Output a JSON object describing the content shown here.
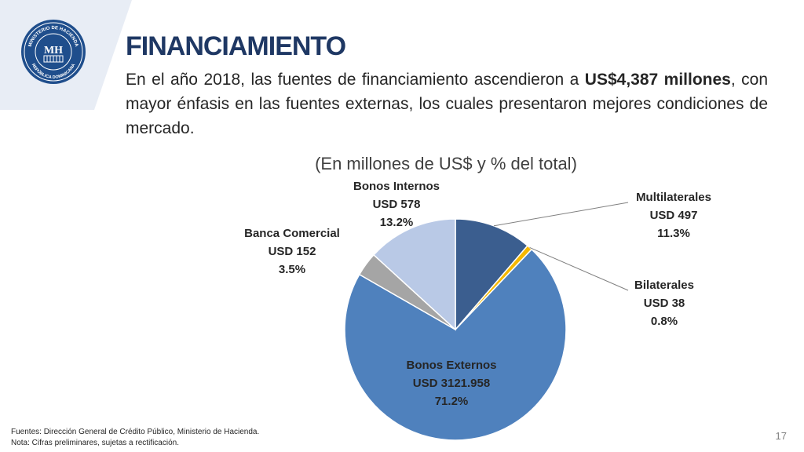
{
  "header": {
    "title": "FINANCIAMIENTO",
    "intro_pre": "En el año 2018, las fuentes de financiamiento ascendieron a ",
    "intro_bold": "US$4,387 millones",
    "intro_post": ", con mayor énfasis en las fuentes externas, los cuales presentaron mejores condiciones de mercado.",
    "logo_text_top": "MINISTERIO DE HACIENDA",
    "logo_text_bottom": "REPÚBLICA DOMINICANA",
    "logo_monogram": "MH"
  },
  "chart_data": {
    "type": "pie",
    "title": "(En millones de US$ y  % del total)",
    "slices": [
      {
        "name": "Multilaterales",
        "amount_label": "USD 497",
        "value": 11.3,
        "pct_label": "11.3%",
        "color": "#3b5e8f"
      },
      {
        "name": "Bilaterales",
        "amount_label": "USD 38",
        "value": 0.8,
        "pct_label": "0.8%",
        "color": "#f5b800"
      },
      {
        "name": "Bonos Externos",
        "amount_label": "USD 3121.958",
        "value": 71.2,
        "pct_label": "71.2%",
        "color": "#4f81bd"
      },
      {
        "name": "Banca Comercial",
        "amount_label": "USD 152",
        "value": 3.5,
        "pct_label": "3.5%",
        "color": "#a5a5a5"
      },
      {
        "name": "Bonos Internos",
        "amount_label": "USD 578",
        "value": 13.2,
        "pct_label": "13.2%",
        "color": "#b9c9e6"
      }
    ]
  },
  "footer": {
    "source": "Fuentes: Dirección General de Crédito Público, Ministerio de Hacienda.",
    "note": "Nota: Cifras preliminares, sujetas a rectificación.",
    "page_number": "17"
  }
}
